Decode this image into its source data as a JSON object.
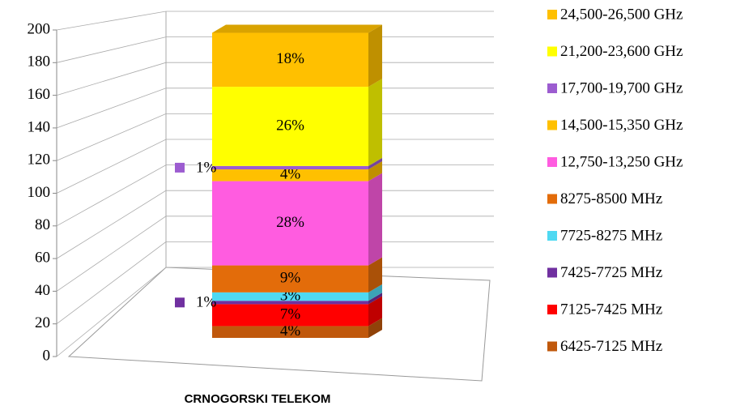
{
  "chart_data": {
    "type": "bar",
    "stacked": true,
    "categories": [
      "CRNOGORSKI TELEKOM"
    ],
    "ylim": [
      0,
      200
    ],
    "yticks": [
      0,
      20,
      40,
      60,
      80,
      100,
      120,
      140,
      160,
      180,
      200
    ],
    "grid": true,
    "legend": "right",
    "series": [
      {
        "name": "6425-7125 MHz",
        "color": "#c0580c",
        "values": [
          7
        ],
        "value_labels": [
          "4%"
        ]
      },
      {
        "name": "7125-7425 MHz",
        "color": "#ff0000",
        "values": [
          13
        ],
        "value_labels": [
          "7%"
        ]
      },
      {
        "name": "7425-7725 MHz",
        "color": "#7030a0",
        "values": [
          2
        ],
        "value_labels": [
          "1%"
        ]
      },
      {
        "name": "7725-8275 MHz",
        "color": "#4fd9f2",
        "values": [
          5
        ],
        "value_labels": [
          "3%"
        ]
      },
      {
        "name": "8275-8500 MHz",
        "color": "#e36c0a",
        "values": [
          16
        ],
        "value_labels": [
          "9%"
        ]
      },
      {
        "name": "12,750-13,250 GHz",
        "color": "#ff5ce0",
        "values": [
          50
        ],
        "value_labels": [
          "28%"
        ]
      },
      {
        "name": "14,500-15,350 GHz",
        "color": "#ffc000",
        "values": [
          7
        ],
        "value_labels": [
          "4%"
        ]
      },
      {
        "name": "17,700-19,700 GHz",
        "color": "#9c5cd0",
        "values": [
          2
        ],
        "value_labels": [
          "1%"
        ]
      },
      {
        "name": "21,200-23,600 GHz",
        "color": "#ffff00",
        "values": [
          47
        ],
        "value_labels": [
          "26%"
        ]
      },
      {
        "name": "24,500-26,500 GHz",
        "color": "#ffc000",
        "values": [
          32
        ],
        "value_labels": [
          "18%"
        ]
      }
    ]
  }
}
